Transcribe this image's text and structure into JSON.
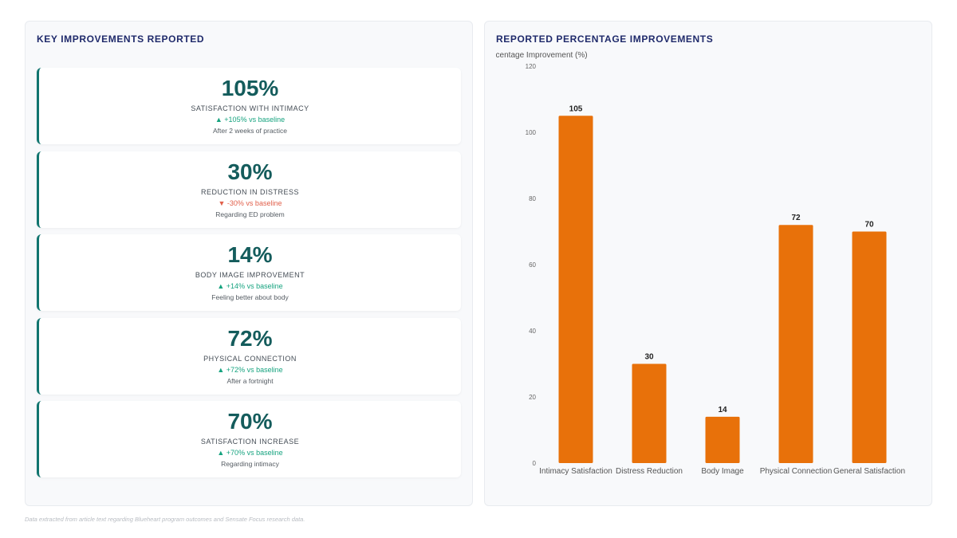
{
  "left": {
    "title": "KEY IMPROVEMENTS REPORTED",
    "cards": [
      {
        "metric": "105%",
        "label": "SATISFACTION WITH INTIMACY",
        "delta": "▲ +105% vs baseline",
        "direction": "up",
        "note": "After 2 weeks of practice"
      },
      {
        "metric": "30%",
        "label": "REDUCTION IN DISTRESS",
        "delta": "▼ -30% vs baseline",
        "direction": "down",
        "note": "Regarding ED problem"
      },
      {
        "metric": "14%",
        "label": "BODY IMAGE IMPROVEMENT",
        "delta": "▲ +14% vs baseline",
        "direction": "up",
        "note": "Feeling better about body"
      },
      {
        "metric": "72%",
        "label": "PHYSICAL CONNECTION",
        "delta": "▲ +72% vs baseline",
        "direction": "up",
        "note": "After a fortnight"
      },
      {
        "metric": "70%",
        "label": "SATISFACTION INCREASE",
        "delta": "▲ +70% vs baseline",
        "direction": "up",
        "note": "Regarding intimacy"
      }
    ]
  },
  "right": {
    "title": "REPORTED PERCENTAGE IMPROVEMENTS"
  },
  "chart_data": {
    "type": "bar",
    "title": "REPORTED PERCENTAGE IMPROVEMENTS",
    "ylabel": "Percentage Improvement (%)",
    "xlabel": "",
    "categories": [
      "Intimacy Satisfaction",
      "Distress Reduction",
      "Body Image",
      "Physical Connection",
      "General Satisfaction"
    ],
    "values": [
      105,
      30,
      14,
      72,
      70
    ],
    "ylim": [
      0,
      120
    ],
    "yticks": [
      0,
      20,
      40,
      60,
      80,
      100,
      120
    ],
    "bar_color": "#e8710a",
    "grid": false,
    "legend": "none"
  },
  "footer": "Data extracted from article text regarding Blueheart program outcomes and Sensate Focus research data."
}
